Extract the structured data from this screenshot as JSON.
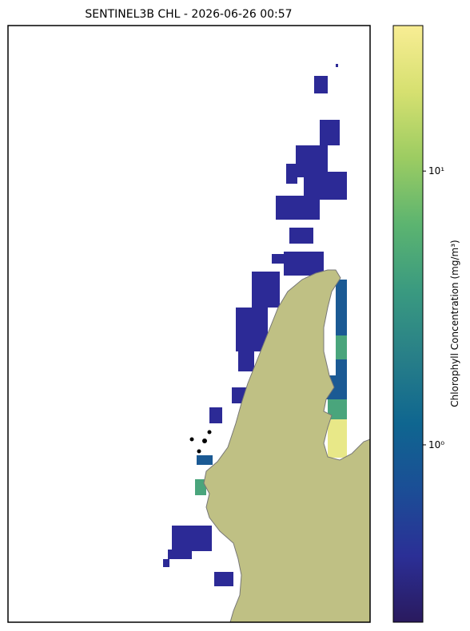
{
  "chart_data": {
    "type": "colormap-map",
    "title": "SENTINEL3B CHL - 2026-06-26 00:57",
    "colorbar_label": "Chlorophyll Concentration (mg/m³)",
    "clim": [
      0.225,
      34
    ],
    "log_scale": true,
    "cticks": [
      {
        "value": 1,
        "label": "10⁰"
      },
      {
        "value": 10,
        "label": "10¹"
      }
    ],
    "colormap": [
      "#2a1a5e",
      "#2b2f96",
      "#1b4e96",
      "#0f6690",
      "#287f88",
      "#3a9a80",
      "#5cb470",
      "#9ccc62",
      "#d6e070",
      "#f8ed94"
    ]
  }
}
